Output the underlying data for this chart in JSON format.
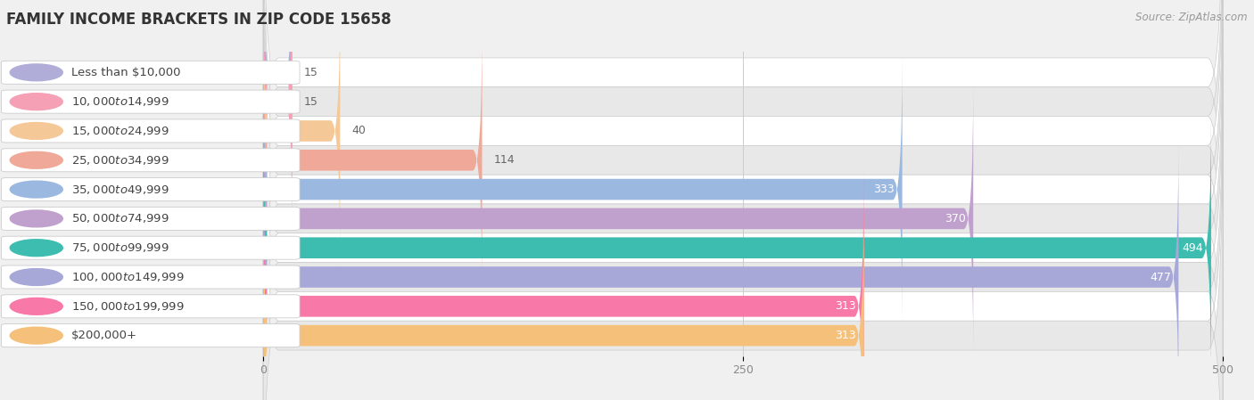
{
  "title": "FAMILY INCOME BRACKETS IN ZIP CODE 15658",
  "source": "Source: ZipAtlas.com",
  "categories": [
    "Less than $10,000",
    "$10,000 to $14,999",
    "$15,000 to $24,999",
    "$25,000 to $34,999",
    "$35,000 to $49,999",
    "$50,000 to $74,999",
    "$75,000 to $99,999",
    "$100,000 to $149,999",
    "$150,000 to $199,999",
    "$200,000+"
  ],
  "values": [
    15,
    15,
    40,
    114,
    333,
    370,
    494,
    477,
    313,
    313
  ],
  "bar_colors": [
    "#b0aed8",
    "#f5a0b5",
    "#f5c898",
    "#f0a898",
    "#9ab8e0",
    "#c0a0cc",
    "#3dbdb0",
    "#a8a8d8",
    "#f878a8",
    "#f5c07a"
  ],
  "white_label_threshold": 200,
  "xlim": [
    0,
    500
  ],
  "xticks": [
    0,
    250,
    500
  ],
  "bg_color": "#f0f0f0",
  "row_color_even": "#ffffff",
  "row_color_odd": "#e8e8e8",
  "title_fontsize": 12,
  "label_fontsize": 9.5,
  "value_fontsize": 9,
  "source_fontsize": 8.5
}
